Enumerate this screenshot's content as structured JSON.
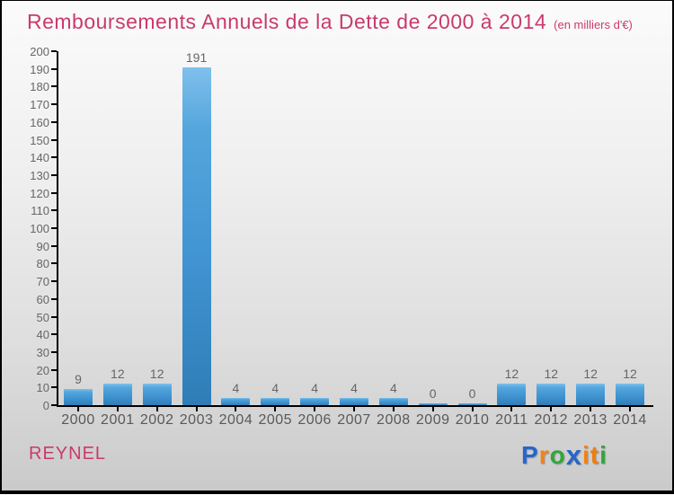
{
  "header": {
    "title": "Remboursements Annuels de la Dette de 2000 à 2014",
    "subtitle": "(en milliers d'€)",
    "title_color": "#c93a6d"
  },
  "chart_data": {
    "type": "bar",
    "title": "Remboursements Annuels de la Dette de 2000 à 2014",
    "subtitle": "(en milliers d'€)",
    "categories": [
      "2000",
      "2001",
      "2002",
      "2003",
      "2004",
      "2005",
      "2006",
      "2007",
      "2008",
      "2009",
      "2010",
      "2011",
      "2012",
      "2013",
      "2014"
    ],
    "values": [
      9,
      12,
      12,
      191,
      4,
      4,
      4,
      4,
      4,
      0,
      0,
      12,
      12,
      12,
      12
    ],
    "xlabel": "",
    "ylabel": "",
    "ylim": [
      0,
      200
    ],
    "ytick_step": 10,
    "grid": false,
    "legend": false,
    "bar_color_top": "#66b3e8",
    "bar_color_bottom": "#2f7db7",
    "value_label_color": "#666666",
    "tick_label_color": "#595959",
    "axis_color": "#000000"
  },
  "footer": {
    "entity": "REYNEL",
    "entity_color": "#c93a6d",
    "logo": {
      "name": "Proxiti",
      "letters": [
        {
          "ch": "P",
          "color": "#2765c9"
        },
        {
          "ch": "r",
          "color": "#f08219"
        },
        {
          "ch": "o",
          "color": "#33a63c"
        },
        {
          "ch": "x",
          "color": "#2765c9",
          "bold_x": true
        },
        {
          "ch": "i",
          "color": "#f08219"
        },
        {
          "ch": "t",
          "color": "#ef7d10"
        },
        {
          "ch": "i",
          "color": "#33a63c"
        }
      ]
    }
  }
}
